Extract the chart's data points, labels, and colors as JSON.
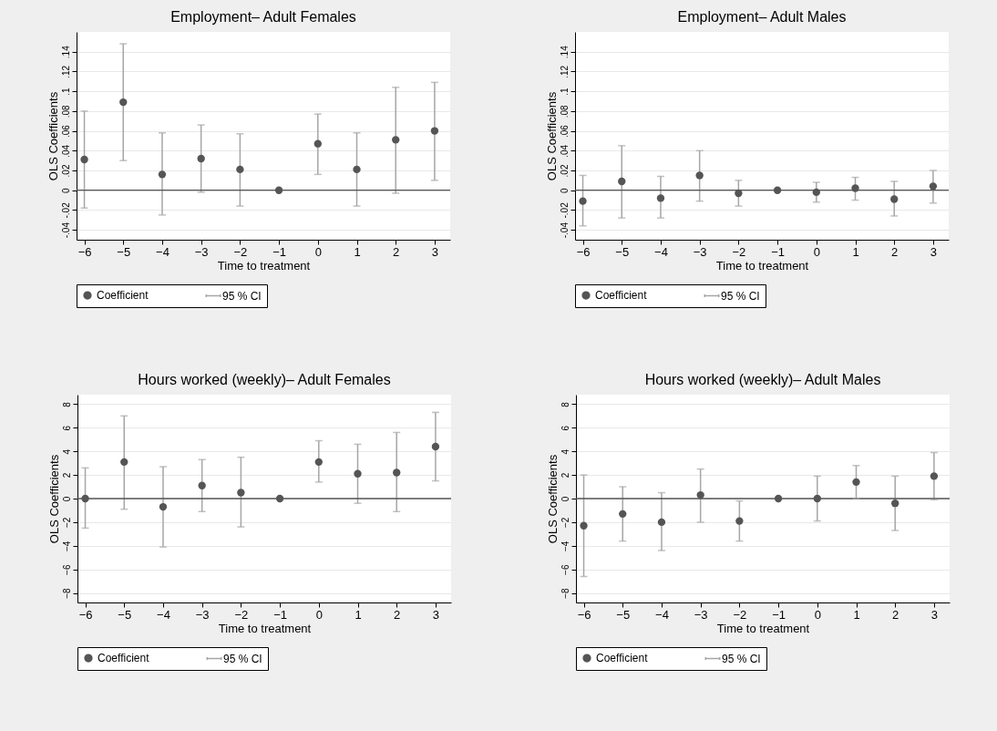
{
  "chart_data": [
    {
      "type": "scatter",
      "title": "Employment– Adult Females",
      "xlabel": "Time to treatment",
      "ylabel": "OLS Coefficients",
      "x": [
        -6,
        -5,
        -4,
        -3,
        -2,
        -1,
        0,
        1,
        2,
        3
      ],
      "xlim": [
        -6.2,
        3.4
      ],
      "xticks": [
        -6,
        -5,
        -4,
        -3,
        -2,
        -1,
        0,
        1,
        2,
        3
      ],
      "ylim": [
        -0.05,
        0.16
      ],
      "yticks": [
        {
          "value": -0.04,
          "label": "-.04"
        },
        {
          "value": -0.02,
          "label": "-.02"
        },
        {
          "value": 0,
          "label": "0"
        },
        {
          "value": 0.02,
          "label": ".02"
        },
        {
          "value": 0.04,
          "label": ".04"
        },
        {
          "value": 0.06,
          "label": ".06"
        },
        {
          "value": 0.08,
          "label": ".08"
        },
        {
          "value": 0.1,
          "label": ".1"
        },
        {
          "value": 0.12,
          "label": ".12"
        },
        {
          "value": 0.14,
          "label": ".14"
        }
      ],
      "grid": "y",
      "legend": "bottom",
      "marker": "circle",
      "annotations": [
        "95 % CI"
      ],
      "ref_lines": [
        {
          "axis": "y",
          "value": 0,
          "color": "#555555"
        }
      ],
      "series": [
        {
          "name": "Coefficient",
          "color": "#555555",
          "values": [
            0.031,
            0.089,
            0.016,
            0.032,
            0.021,
            0,
            0.047,
            0.021,
            0.051,
            0.06
          ],
          "errors": [
            [
              -0.018,
              0.08
            ],
            [
              0.03,
              0.148
            ],
            [
              -0.025,
              0.058
            ],
            [
              -0.002,
              0.066
            ],
            [
              -0.016,
              0.057
            ],
            null,
            [
              0.016,
              0.077
            ],
            [
              -0.016,
              0.058
            ],
            [
              -0.003,
              0.104
            ],
            [
              0.01,
              0.109
            ]
          ]
        }
      ]
    },
    {
      "type": "scatter",
      "title": "Employment– Adult Males",
      "xlabel": "Time to treatment",
      "ylabel": "OLS Coefficients",
      "x": [
        -6,
        -5,
        -4,
        -3,
        -2,
        -1,
        0,
        1,
        2,
        3
      ],
      "xlim": [
        -6.2,
        3.4
      ],
      "xticks": [
        -6,
        -5,
        -4,
        -3,
        -2,
        -1,
        0,
        1,
        2,
        3
      ],
      "ylim": [
        -0.05,
        0.16
      ],
      "yticks": [
        {
          "value": -0.04,
          "label": "-.04"
        },
        {
          "value": -0.02,
          "label": "-.02"
        },
        {
          "value": 0,
          "label": "0"
        },
        {
          "value": 0.02,
          "label": ".02"
        },
        {
          "value": 0.04,
          "label": ".04"
        },
        {
          "value": 0.06,
          "label": ".06"
        },
        {
          "value": 0.08,
          "label": ".08"
        },
        {
          "value": 0.1,
          "label": ".1"
        },
        {
          "value": 0.12,
          "label": ".12"
        },
        {
          "value": 0.14,
          "label": ".14"
        }
      ],
      "grid": "y",
      "legend": "bottom",
      "marker": "circle",
      "annotations": [
        "95 % CI"
      ],
      "ref_lines": [
        {
          "axis": "y",
          "value": 0,
          "color": "#555555"
        }
      ],
      "series": [
        {
          "name": "Coefficient",
          "color": "#555555",
          "values": [
            -0.011,
            0.009,
            -0.008,
            0.015,
            -0.003,
            0,
            -0.002,
            0.002,
            -0.009,
            0.004
          ],
          "errors": [
            [
              -0.036,
              0.015
            ],
            [
              -0.028,
              0.045
            ],
            [
              -0.028,
              0.014
            ],
            [
              -0.011,
              0.04
            ],
            [
              -0.016,
              0.01
            ],
            null,
            [
              -0.012,
              0.008
            ],
            [
              -0.01,
              0.013
            ],
            [
              -0.026,
              0.009
            ],
            [
              -0.013,
              0.02
            ]
          ]
        }
      ]
    },
    {
      "type": "scatter",
      "title": "Hours worked (weekly)– Adult Females",
      "xlabel": "Time to treatment",
      "ylabel": "OLS Coefficients",
      "x": [
        -6,
        -5,
        -4,
        -3,
        -2,
        -1,
        0,
        1,
        2,
        3
      ],
      "xlim": [
        -6.2,
        3.4
      ],
      "xticks": [
        -6,
        -5,
        -4,
        -3,
        -2,
        -1,
        0,
        1,
        2,
        3
      ],
      "ylim": [
        -8.8,
        8.8
      ],
      "yticks": [
        -8,
        -6,
        -4,
        -2,
        0,
        2,
        4,
        6,
        8
      ],
      "grid": "y",
      "legend": "bottom",
      "marker": "circle",
      "annotations": [
        "95 % CI"
      ],
      "ref_lines": [
        {
          "axis": "y",
          "value": 0,
          "color": "#555555"
        }
      ],
      "series": [
        {
          "name": "Coefficient",
          "color": "#555555",
          "values": [
            0,
            3.1,
            -0.7,
            1.1,
            0.5,
            0,
            3.1,
            2.1,
            2.2,
            4.4
          ],
          "errors": [
            [
              -2.5,
              2.6
            ],
            [
              -0.9,
              7.0
            ],
            [
              -4.1,
              2.7
            ],
            [
              -1.1,
              3.3
            ],
            [
              -2.4,
              3.5
            ],
            null,
            [
              1.4,
              4.9
            ],
            [
              -0.4,
              4.6
            ],
            [
              -1.1,
              5.6
            ],
            [
              1.5,
              7.3
            ]
          ]
        }
      ]
    },
    {
      "type": "scatter",
      "title": "Hours worked (weekly)– Adult Males",
      "xlabel": "Time to treatment",
      "ylabel": "OLS Coefficients",
      "x": [
        -6,
        -5,
        -4,
        -3,
        -2,
        -1,
        0,
        1,
        2,
        3
      ],
      "xlim": [
        -6.2,
        3.4
      ],
      "xticks": [
        -6,
        -5,
        -4,
        -3,
        -2,
        -1,
        0,
        1,
        2,
        3
      ],
      "ylim": [
        -8.8,
        8.8
      ],
      "yticks": [
        -8,
        -6,
        -4,
        -2,
        0,
        2,
        4,
        6,
        8
      ],
      "grid": "y",
      "legend": "bottom",
      "marker": "circle",
      "annotations": [
        "95 % CI"
      ],
      "ref_lines": [
        {
          "axis": "y",
          "value": 0,
          "color": "#555555"
        }
      ],
      "series": [
        {
          "name": "Coefficient",
          "color": "#555555",
          "values": [
            -2.3,
            -1.3,
            -2.0,
            0.3,
            -1.9,
            0,
            0,
            1.4,
            -0.4,
            1.9
          ],
          "errors": [
            [
              -6.6,
              2.0
            ],
            [
              -3.6,
              1.0
            ],
            [
              -4.4,
              0.5
            ],
            [
              -2.0,
              2.5
            ],
            [
              -3.6,
              -0.2
            ],
            null,
            [
              -1.9,
              1.9
            ],
            [
              0,
              2.8
            ],
            [
              -2.7,
              1.9
            ],
            [
              -0.1,
              3.9
            ]
          ]
        }
      ]
    }
  ]
}
